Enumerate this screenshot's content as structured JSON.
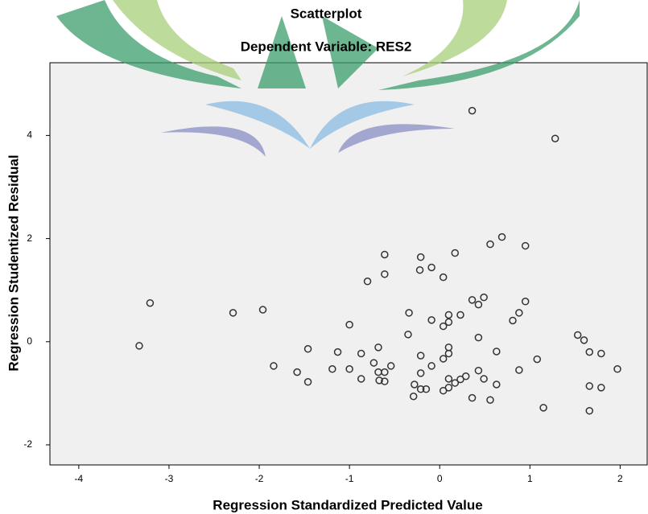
{
  "chart_data": {
    "type": "scatter",
    "title": "Scatterplot",
    "subtitle": "Dependent Variable: RES2",
    "x_label": "Regression Standardized Predicted Value",
    "y_label": "Regression Studentized Residual",
    "xlim": [
      -4.32,
      2.3
    ],
    "ylim": [
      -2.39,
      5.41
    ],
    "xticks": [
      -4,
      -3,
      -2,
      -1,
      0,
      1,
      2
    ],
    "yticks": [
      -2,
      0,
      2,
      4
    ],
    "marker_color": "#333333",
    "background": "#f0f0f0",
    "x": [
      -3.33,
      -3.21,
      -2.29,
      -1.96,
      -1.84,
      -1.58,
      -1.46,
      -1.46,
      -1.19,
      -1.13,
      -1.0,
      -1.0,
      -0.87,
      -0.87,
      -0.8,
      -0.73,
      -0.68,
      -0.68,
      -0.67,
      -0.61,
      -0.61,
      -0.61,
      -0.61,
      -0.54,
      -0.35,
      -0.34,
      -0.29,
      -0.28,
      -0.22,
      -0.21,
      -0.21,
      -0.21,
      -0.21,
      -0.15,
      -0.09,
      -0.09,
      -0.09,
      0.04,
      0.04,
      0.04,
      0.04,
      0.1,
      0.1,
      0.1,
      0.1,
      0.1,
      0.1,
      0.17,
      0.17,
      0.23,
      0.23,
      0.29,
      0.36,
      0.36,
      0.36,
      0.43,
      0.43,
      0.43,
      0.49,
      0.49,
      0.56,
      0.56,
      0.63,
      0.63,
      0.69,
      0.81,
      0.88,
      0.88,
      0.95,
      0.95,
      1.15,
      1.08,
      1.28,
      1.53,
      1.6,
      1.66,
      1.66,
      1.66,
      1.79,
      1.79,
      1.97
    ],
    "values": [
      -0.08,
      0.75,
      0.56,
      0.62,
      -0.47,
      -0.59,
      -0.14,
      -0.78,
      -0.53,
      -0.2,
      0.33,
      -0.53,
      -0.23,
      -0.72,
      1.17,
      -0.41,
      -0.11,
      -0.59,
      -0.75,
      1.69,
      1.31,
      -0.59,
      -0.77,
      -0.47,
      0.14,
      0.56,
      -1.06,
      -0.83,
      1.39,
      1.64,
      -0.27,
      -0.61,
      -0.92,
      -0.92,
      1.44,
      0.42,
      -0.47,
      1.25,
      0.3,
      -0.33,
      -0.95,
      0.52,
      0.38,
      -0.11,
      -0.23,
      -0.72,
      -0.89,
      1.72,
      -0.8,
      0.52,
      -0.73,
      -0.67,
      4.48,
      0.81,
      -1.09,
      0.72,
      0.08,
      -0.56,
      0.86,
      -0.72,
      1.89,
      -1.13,
      -0.19,
      -0.83,
      2.03,
      0.41,
      0.56,
      -0.55,
      1.86,
      0.78,
      -1.28,
      -0.34,
      3.94,
      0.13,
      0.03,
      -0.2,
      -0.86,
      -1.34,
      -0.23,
      -0.89,
      -0.53
    ]
  }
}
